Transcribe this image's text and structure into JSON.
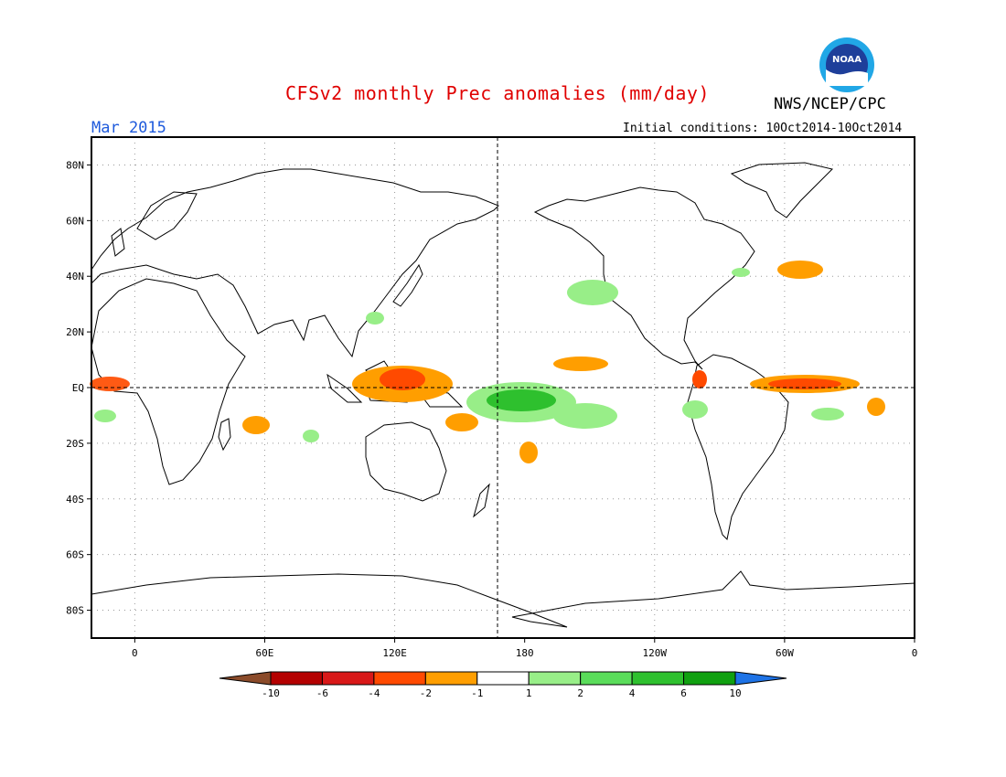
{
  "header": {
    "title": "CFSv2 monthly Prec anomalies (mm/day)",
    "agency": "NWS/NCEP/CPC",
    "period": "Mar 2015",
    "initial_conditions": "Initial conditions: 10Oct2014-10Oct2014",
    "logo_text": "NOAA"
  },
  "map": {
    "projection": "cylindrical equidistant",
    "lon_range": [
      -20,
      360
    ],
    "lat_range": [
      -90,
      90
    ],
    "lat_ticks": [
      {
        "value": 80,
        "label": "80N"
      },
      {
        "value": 60,
        "label": "60N"
      },
      {
        "value": 40,
        "label": "40N"
      },
      {
        "value": 20,
        "label": "20N"
      },
      {
        "value": 0,
        "label": "EQ"
      },
      {
        "value": -20,
        "label": "20S"
      },
      {
        "value": -40,
        "label": "40S"
      },
      {
        "value": -60,
        "label": "60S"
      },
      {
        "value": -80,
        "label": "80S"
      }
    ],
    "lon_ticks": [
      {
        "value": 0,
        "label": "0"
      },
      {
        "value": 60,
        "label": "60E"
      },
      {
        "value": 120,
        "label": "120E"
      },
      {
        "value": 180,
        "label": "180"
      },
      {
        "value": 240,
        "label": "120W"
      },
      {
        "value": 300,
        "label": "60W"
      },
      {
        "value": 360,
        "label": "0"
      }
    ],
    "grid": "dotted",
    "reference_lines": [
      "equator",
      "dateline"
    ]
  },
  "colorbar": {
    "labels": [
      "-10",
      "-6",
      "-4",
      "-2",
      "-1",
      "1",
      "2",
      "4",
      "6",
      "10"
    ],
    "colors": [
      "#8b4b2a",
      "#b40000",
      "#d81818",
      "#ff4a00",
      "#ff9e00",
      "#ffffff",
      "#98ee88",
      "#5adc5a",
      "#2ec02e",
      "#10a010",
      "#1e73e6"
    ]
  }
}
